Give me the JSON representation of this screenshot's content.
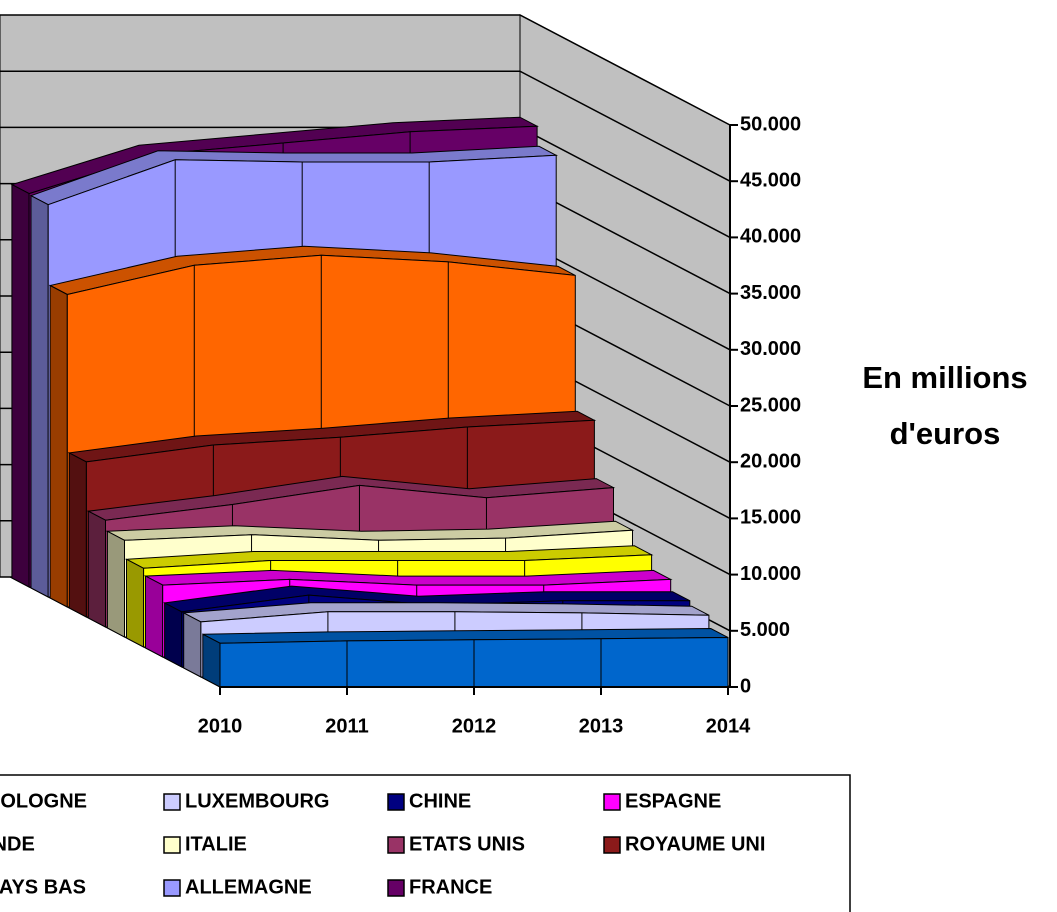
{
  "chart_data": {
    "type": "area3d",
    "y_axis_label": "En millions d'euros",
    "categories": [
      "2010",
      "2011",
      "2012",
      "2013",
      "2014"
    ],
    "ylim": [
      0,
      50000
    ],
    "yticks": [
      {
        "value": 0,
        "label": "0"
      },
      {
        "value": 5000,
        "label": "5.000"
      },
      {
        "value": 10000,
        "label": "10.000"
      },
      {
        "value": 15000,
        "label": "15.000"
      },
      {
        "value": 20000,
        "label": "20.000"
      },
      {
        "value": 25000,
        "label": "25.000"
      },
      {
        "value": 30000,
        "label": "30.000"
      },
      {
        "value": 35000,
        "label": "35.000"
      },
      {
        "value": 40000,
        "label": "40.000"
      },
      {
        "value": 45000,
        "label": "45.000"
      },
      {
        "value": 50000,
        "label": "50.000"
      }
    ],
    "grid": true,
    "series": [
      {
        "name": "POLOGNE",
        "color": "#0066cc",
        "values": [
          3900,
          4100,
          4200,
          4300,
          4400
        ]
      },
      {
        "name": "LUXEMBOURG",
        "color": "#ccccff",
        "values": [
          4900,
          5800,
          5800,
          5700,
          5500
        ]
      },
      {
        "name": "CHINE",
        "color": "#000080",
        "values": [
          4900,
          6400,
          5500,
          5900,
          5900
        ]
      },
      {
        "name": "ESPAGNE",
        "color": "#ff00ff",
        "values": [
          6400,
          6900,
          6400,
          6400,
          6900
        ]
      },
      {
        "name": "INDE",
        "color": "#ffff00",
        "values": [
          7000,
          7700,
          7700,
          7700,
          8200
        ]
      },
      {
        "name": "ITALIE",
        "color": "#ffffcc",
        "values": [
          8600,
          9100,
          8600,
          8800,
          9500
        ]
      },
      {
        "name": "ETATS UNIS",
        "color": "#993366",
        "values": [
          9500,
          10900,
          12600,
          11500,
          12400
        ]
      },
      {
        "name": "ROYAUME UNI",
        "color": "#8b1a1a",
        "values": [
          13800,
          15300,
          16000,
          16900,
          17500
        ]
      },
      {
        "name": "PAYS BAS",
        "color": "#ff6600",
        "values": [
          27800,
          30400,
          31300,
          30700,
          29500
        ]
      },
      {
        "name": "ALLEMAGNE",
        "color": "#9999ff",
        "values": [
          34900,
          38900,
          38700,
          38700,
          39300
        ]
      },
      {
        "name": "FRANCE",
        "color": "#660066",
        "values": [
          35000,
          38500,
          39500,
          40500,
          41000
        ]
      }
    ]
  }
}
